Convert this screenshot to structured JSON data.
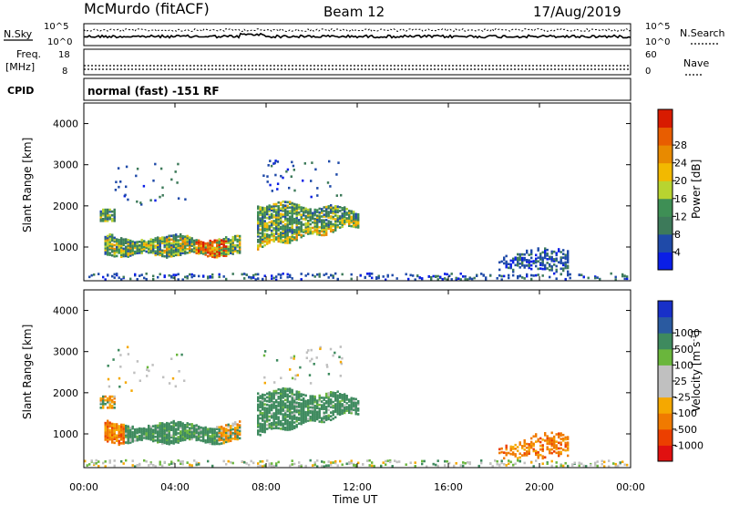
{
  "header": {
    "station": "McMurdo (fitACF)",
    "beam": "Beam 12",
    "date": "17/Aug/2019"
  },
  "labels": {
    "nsky": "N.Sky",
    "nsearch": "N.Search",
    "freq_line1": "Freq.",
    "freq_line2": "[MHz]",
    "nave": "Nave",
    "cpid": "CPID",
    "cpid_value": "normal (fast) -151 RF"
  },
  "top_axes": {
    "noise_ticks_left": [
      "10^5",
      "10^0"
    ],
    "noise_ticks_right": [
      "10^5",
      "10^0"
    ],
    "freq_ticks": [
      "18",
      "8"
    ],
    "nave_ticks": [
      "60",
      "0"
    ]
  },
  "colors": {
    "power": [
      "#0a1ee6",
      "#1f4aa8",
      "#3d7a5a",
      "#3e8f55",
      "#b8d430",
      "#f2b900",
      "#e88a00",
      "#e85d00",
      "#d81b00"
    ],
    "velocity": [
      "#e01010",
      "#ec3f00",
      "#f07a00",
      "#f5a800",
      "#c0c0c0",
      "#c0c0c0",
      "#6ab63c",
      "#3e8a5e",
      "#2a5aa0",
      "#1830c8"
    ]
  },
  "chart_data": [
    {
      "type": "heatmap",
      "name": "power",
      "x_label": "",
      "xlim_hours": [
        0,
        24
      ],
      "y_label": "Slant Range [km]",
      "ylim": [
        180,
        4500
      ],
      "y_ticks": [
        1000,
        2000,
        3000,
        4000
      ],
      "colorbar_label": "Power [dB]",
      "colorbar_ticks": [
        "4",
        "8",
        "12",
        "16",
        "20",
        "24",
        "28"
      ],
      "bins": [
        4,
        8,
        12,
        16,
        20,
        24,
        28
      ],
      "regions": [
        {
          "t": [
            0.9,
            6.8
          ],
          "r": [
            800,
            1250
          ],
          "level": "mixed-strong"
        },
        {
          "t": [
            4.8,
            6.2
          ],
          "r": [
            700,
            1200
          ],
          "level": "peak ~28-32"
        },
        {
          "t": [
            0.7,
            1.3
          ],
          "r": [
            1650,
            1900
          ],
          "level": "medium"
        },
        {
          "t": [
            7.6,
            12.0
          ],
          "r": [
            900,
            2100
          ],
          "level": "medium-strong"
        },
        {
          "t": [
            18.2,
            21.2
          ],
          "r": [
            380,
            1050
          ],
          "level": "weak"
        },
        {
          "t": [
            0.0,
            24.0
          ],
          "r": [
            180,
            300
          ],
          "level": "ground scatter noise"
        }
      ]
    },
    {
      "type": "heatmap",
      "name": "velocity",
      "x_label": "Time UT",
      "x_ticks": [
        "00:00",
        "04:00",
        "08:00",
        "12:00",
        "16:00",
        "20:00",
        "00:00"
      ],
      "xlim_hours": [
        0,
        24
      ],
      "y_label": "Slant Range [km]",
      "ylim": [
        180,
        4500
      ],
      "y_ticks": [
        1000,
        2000,
        3000,
        4000
      ],
      "colorbar_label": "Velocity [m s^-1]",
      "colorbar_ticks": [
        "-1000",
        "-500",
        "-100",
        "-25",
        "25",
        "100",
        "500",
        "1000"
      ],
      "regions": [
        {
          "t": [
            0.8,
            6.8
          ],
          "r": [
            800,
            1250
          ],
          "value_range": "-25..100"
        },
        {
          "t": [
            0.8,
            1.7
          ],
          "r": [
            900,
            1200
          ],
          "value_range": "-500..-100"
        },
        {
          "t": [
            7.6,
            12.0
          ],
          "r": [
            900,
            2100
          ],
          "value_range": "25..100"
        },
        {
          "t": [
            18.5,
            21.5
          ],
          "r": [
            400,
            1000
          ],
          "value_range": "-500..-100"
        }
      ]
    }
  ]
}
